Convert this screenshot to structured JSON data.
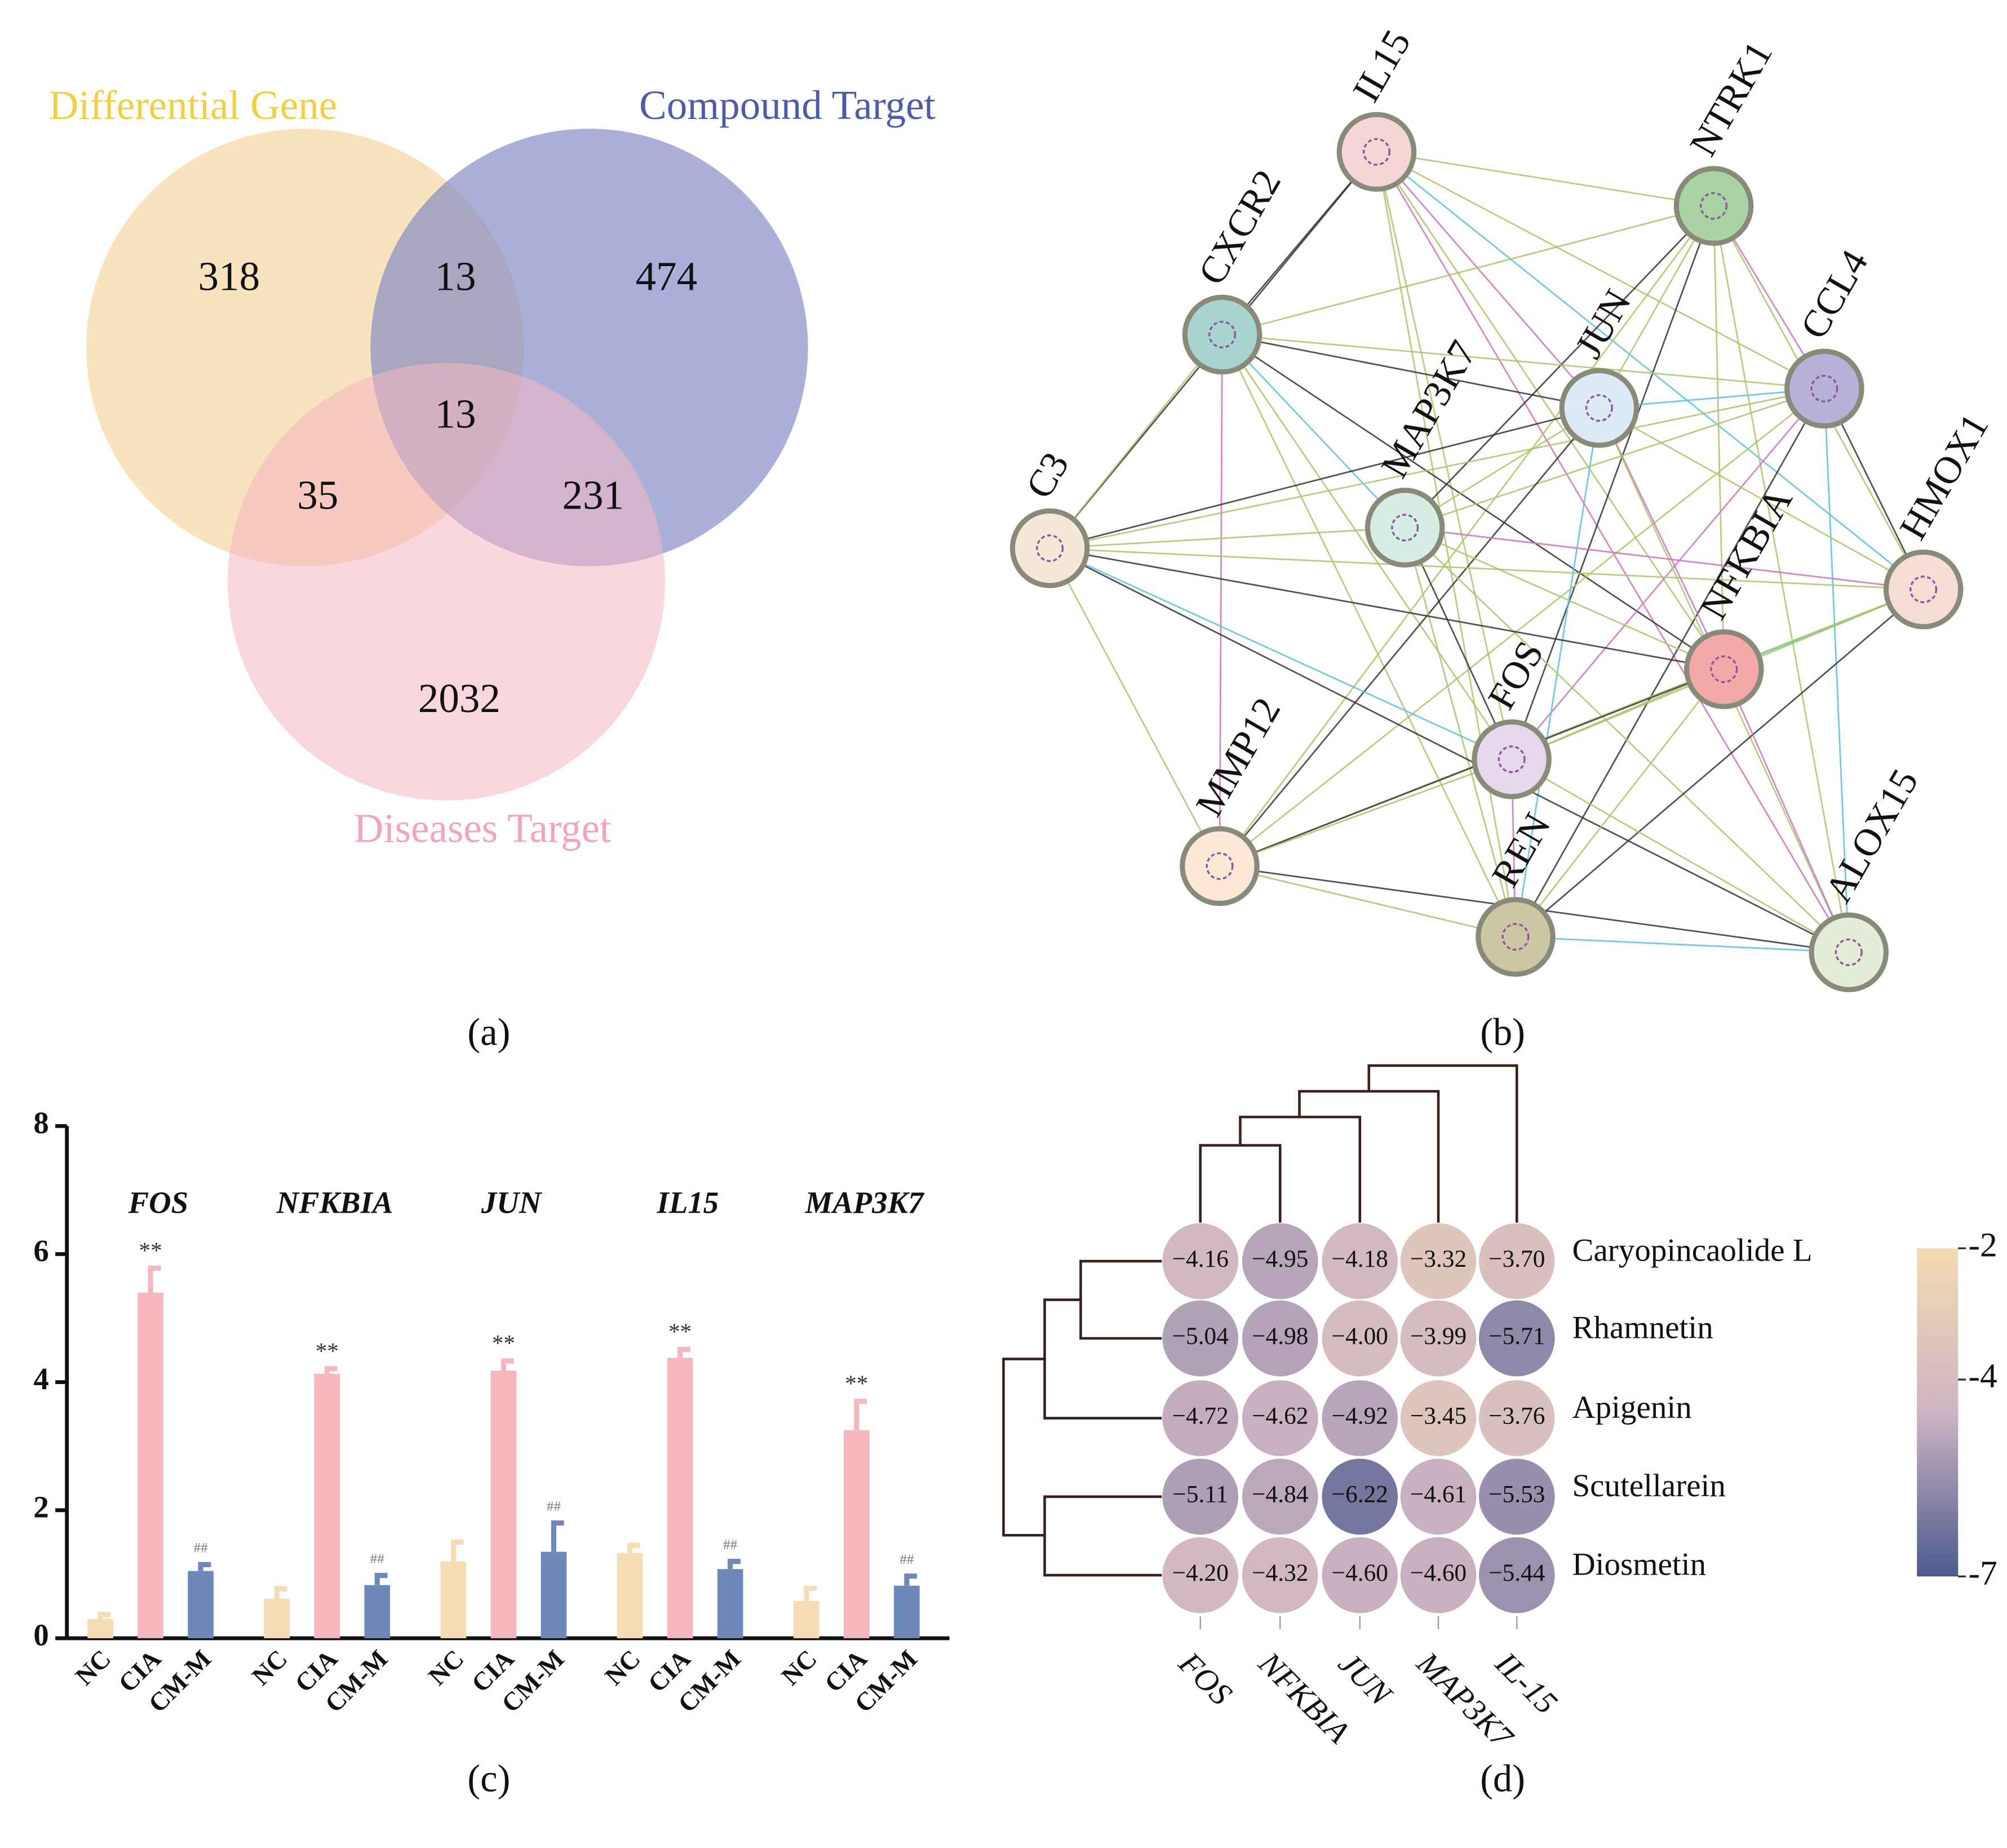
{
  "chart_data": [
    {
      "type": "venn",
      "panel": "(a)",
      "sets": [
        {
          "name": "Differential Gene",
          "color": "#f5d9a8",
          "label_color": "#f0d040"
        },
        {
          "name": "Compound Target",
          "color": "#7d86c2",
          "label_color": "#4e5ca8"
        },
        {
          "name": "Diseases Target",
          "color": "#f5b7c3",
          "label_color": "#f2a4bc"
        }
      ],
      "values": [
        318,
        474,
        2032,
        13,
        35,
        231,
        13
      ]
    },
    {
      "type": "network",
      "panel": "(b)",
      "nodes": [
        {
          "label": "IL15",
          "color": "#f6d5d5"
        },
        {
          "label": "NTRK1",
          "color": "#a9d3a3"
        },
        {
          "label": "CXCR2",
          "color": "#a8d4d0"
        },
        {
          "label": "CCL4",
          "color": "#b7b1da"
        },
        {
          "label": "JUN",
          "color": "#dde9f7"
        },
        {
          "label": "MAP3K7",
          "color": "#d5ede2"
        },
        {
          "label": "C3",
          "color": "#f6e8d8"
        },
        {
          "label": "HMOX1",
          "color": "#f5dcd5"
        },
        {
          "label": "NFKBIA",
          "color": "#f4a8a8"
        },
        {
          "label": "FOS",
          "color": "#e6d7ec"
        },
        {
          "label": "MMP12",
          "color": "#fde8d8"
        },
        {
          "label": "REN",
          "color": "#cdc6a4"
        },
        {
          "label": "ALOX15",
          "color": "#e3ecd6"
        }
      ]
    },
    {
      "type": "bar",
      "panel": "(c)",
      "categories": [
        "FOS",
        "NFKBIA",
        "JUN",
        "IL15",
        "MAP3K7"
      ],
      "series": [
        {
          "name": "NC",
          "color": "#f5dcb4",
          "values": [
            0.3,
            0.62,
            1.2,
            1.33,
            0.58
          ],
          "errors": [
            0.07,
            0.15,
            0.3,
            0.12,
            0.2
          ]
        },
        {
          "name": "CIA",
          "color": "#f6b6bd",
          "values": [
            5.4,
            4.13,
            4.18,
            4.38,
            3.25
          ],
          "errors": [
            0.38,
            0.08,
            0.15,
            0.13,
            0.45
          ],
          "annotation": "**"
        },
        {
          "name": "CM-M",
          "color": "#6f88bb",
          "values": [
            1.05,
            0.83,
            1.35,
            1.08,
            0.82
          ],
          "errors": [
            0.1,
            0.15,
            0.45,
            0.12,
            0.15
          ],
          "annotation": "##"
        }
      ],
      "ylim": [
        0,
        8
      ],
      "yticks": [
        0,
        2,
        4,
        6,
        8
      ]
    },
    {
      "type": "heatmap",
      "panel": "(d)",
      "rows": [
        "Caryopincaolide L",
        "Rhamnetin",
        "Apigenin",
        "Scutellarein",
        "Diosmetin"
      ],
      "columns": [
        "FOS",
        "NFKBIA",
        "JUN",
        "MAP3K7",
        "IL-15"
      ],
      "values": [
        [
          -4.16,
          -4.95,
          -4.18,
          -3.32,
          -3.7
        ],
        [
          -5.04,
          -4.98,
          -4.0,
          -3.99,
          -5.71
        ],
        [
          -4.72,
          -4.62,
          -4.92,
          -3.45,
          -3.76
        ],
        [
          -5.11,
          -4.84,
          -6.22,
          -4.61,
          -5.53
        ],
        [
          -4.2,
          -4.32,
          -4.6,
          -4.6,
          -5.44
        ]
      ],
      "value_labels": [
        [
          "−4.16",
          "−4.95",
          "−4.18",
          "−3.32",
          "−3.70"
        ],
        [
          "−5.04",
          "−4.98",
          "−4.00",
          "−3.99",
          "−5.71"
        ],
        [
          "−4.72",
          "−4.62",
          "−4.92",
          "−3.45",
          "−3.76"
        ],
        [
          "−5.11",
          "−4.84",
          "−6.22",
          "−4.61",
          "−5.53"
        ],
        [
          "−4.20",
          "−4.32",
          "−4.60",
          "−4.60",
          "−5.44"
        ]
      ],
      "zlim": [
        -7,
        -2
      ],
      "zticks": [
        -2,
        -4,
        -7
      ],
      "colormap": [
        "#f3dbb3",
        "#cdb4c2",
        "#4b5a8e"
      ]
    }
  ]
}
